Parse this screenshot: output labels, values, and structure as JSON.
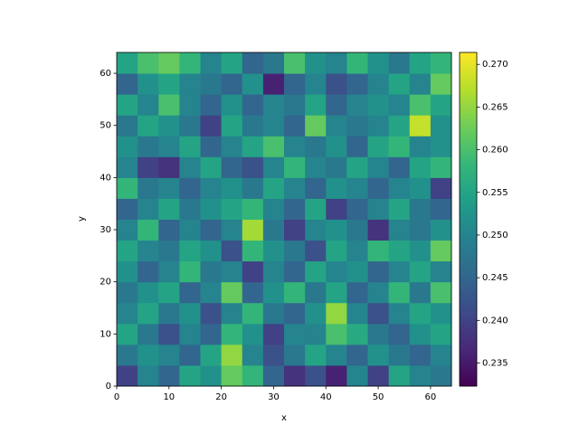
{
  "chart_data": {
    "type": "heatmap",
    "x_label": "x",
    "y_label": "y",
    "xlim": [
      0,
      64
    ],
    "ylim": [
      0,
      64
    ],
    "xticks": [
      0,
      10,
      20,
      30,
      40,
      50,
      60
    ],
    "yticks": [
      0,
      10,
      20,
      30,
      40,
      50,
      60
    ],
    "colormap": "viridis",
    "zlim": [
      0.2323,
      0.2714
    ],
    "zticks": [
      0.235,
      {
        "value": 0.24,
        "label": "0.240"
      },
      0.245,
      {
        "value": 0.25,
        "label": "0.250"
      },
      0.255,
      {
        "value": 0.26,
        "label": "0.260"
      },
      0.265,
      {
        "value": 0.27,
        "label": "0.270"
      }
    ],
    "z": [
      [
        0.24,
        0.25,
        0.245,
        0.255,
        0.252,
        0.262,
        0.258,
        0.245,
        0.238,
        0.242,
        0.236,
        0.25,
        0.24,
        0.255,
        0.25,
        0.248
      ],
      [
        0.248,
        0.252,
        0.25,
        0.245,
        0.255,
        0.265,
        0.25,
        0.242,
        0.248,
        0.255,
        0.25,
        0.245,
        0.252,
        0.248,
        0.245,
        0.25
      ],
      [
        0.255,
        0.248,
        0.242,
        0.25,
        0.245,
        0.258,
        0.252,
        0.24,
        0.25,
        0.25,
        0.26,
        0.256,
        0.248,
        0.245,
        0.252,
        0.255
      ],
      [
        0.25,
        0.255,
        0.248,
        0.252,
        0.242,
        0.25,
        0.258,
        0.248,
        0.245,
        0.252,
        0.265,
        0.25,
        0.242,
        0.25,
        0.255,
        0.252
      ],
      [
        0.248,
        0.252,
        0.255,
        0.245,
        0.25,
        0.262,
        0.245,
        0.252,
        0.258,
        0.248,
        0.255,
        0.245,
        0.25,
        0.258,
        0.248,
        0.26
      ],
      [
        0.252,
        0.245,
        0.25,
        0.258,
        0.248,
        0.25,
        0.24,
        0.25,
        0.245,
        0.255,
        0.25,
        0.252,
        0.245,
        0.25,
        0.255,
        0.25
      ],
      [
        0.255,
        0.25,
        0.248,
        0.255,
        0.252,
        0.242,
        0.258,
        0.252,
        0.248,
        0.242,
        0.255,
        0.25,
        0.258,
        0.255,
        0.252,
        0.262
      ],
      [
        0.25,
        0.258,
        0.245,
        0.25,
        0.245,
        0.25,
        0.266,
        0.248,
        0.24,
        0.25,
        0.252,
        0.248,
        0.238,
        0.25,
        0.248,
        0.252
      ],
      [
        0.245,
        0.25,
        0.255,
        0.248,
        0.252,
        0.255,
        0.258,
        0.25,
        0.245,
        0.255,
        0.24,
        0.245,
        0.25,
        0.255,
        0.248,
        0.245
      ],
      [
        0.258,
        0.248,
        0.25,
        0.245,
        0.25,
        0.252,
        0.248,
        0.255,
        0.25,
        0.245,
        0.252,
        0.25,
        0.245,
        0.25,
        0.252,
        0.24
      ],
      [
        0.25,
        0.24,
        0.238,
        0.25,
        0.255,
        0.245,
        0.242,
        0.25,
        0.258,
        0.25,
        0.248,
        0.255,
        0.25,
        0.245,
        0.255,
        0.258
      ],
      [
        0.252,
        0.248,
        0.25,
        0.255,
        0.245,
        0.25,
        0.255,
        0.26,
        0.25,
        0.248,
        0.252,
        0.245,
        0.255,
        0.258,
        0.25,
        0.252
      ],
      [
        0.248,
        0.255,
        0.252,
        0.248,
        0.24,
        0.255,
        0.248,
        0.25,
        0.245,
        0.262,
        0.25,
        0.248,
        0.25,
        0.255,
        0.268,
        0.252
      ],
      [
        0.255,
        0.25,
        0.26,
        0.25,
        0.245,
        0.252,
        0.245,
        0.25,
        0.248,
        0.255,
        0.245,
        0.25,
        0.252,
        0.25,
        0.26,
        0.255
      ],
      [
        0.245,
        0.252,
        0.255,
        0.25,
        0.248,
        0.245,
        0.252,
        0.236,
        0.245,
        0.25,
        0.242,
        0.245,
        0.25,
        0.255,
        0.25,
        0.262
      ],
      [
        0.255,
        0.26,
        0.262,
        0.258,
        0.25,
        0.255,
        0.245,
        0.248,
        0.26,
        0.252,
        0.25,
        0.258,
        0.252,
        0.248,
        0.255,
        0.258
      ]
    ]
  }
}
